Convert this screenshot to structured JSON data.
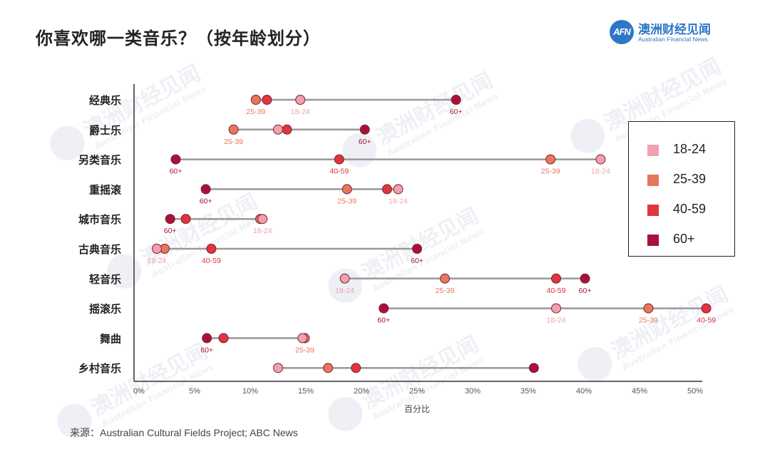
{
  "title": "你喜欢哪一类音乐？（按年龄划分）",
  "logo": {
    "mark": "AFN",
    "name_cn": "澳洲财经见闻",
    "name_en": "Australian Financial News"
  },
  "watermark": {
    "text_cn": "澳洲财经见闻",
    "text_en": "Australian Financial News"
  },
  "source": "来源：Australian Cultural Fields Project; ABC News",
  "colors": {
    "18-24": "#f0a1b0",
    "25-39": "#e8775a",
    "40-59": "#e0353e",
    "60+": "#a8123a",
    "line": "#999999"
  },
  "chart_data": {
    "type": "dot",
    "title": "你喜欢哪一类音乐？（按年龄划分）",
    "xlabel": "百分比",
    "xlim": [
      0,
      50
    ],
    "xticks": [
      "0%",
      "5%",
      "10%",
      "15%",
      "20%",
      "25%",
      "30%",
      "35%",
      "40%",
      "45%",
      "50%"
    ],
    "legend_position": "right",
    "series_names": [
      "18-24",
      "25-39",
      "40-59",
      "60+"
    ],
    "categories": [
      "经典乐",
      "爵士乐",
      "另类音乐",
      "重摇滚",
      "城市音乐",
      "古典音乐",
      "轻音乐",
      "摇滚乐",
      "舞曲",
      "乡村音乐"
    ],
    "rows": [
      {
        "genre": "经典乐",
        "values": {
          "18-24": 14.5,
          "25-39": 10.5,
          "40-59": 11.5,
          "60+": 28.5
        },
        "shown_labels": [
          "25-39",
          "18-24",
          "60+"
        ]
      },
      {
        "genre": "爵士乐",
        "values": {
          "18-24": 12.5,
          "25-39": 8.5,
          "40-59": 13.3,
          "60+": 20.3
        },
        "shown_labels": [
          "25-39",
          "60+"
        ]
      },
      {
        "genre": "另类音乐",
        "values": {
          "18-24": 41.5,
          "25-39": 37.0,
          "40-59": 18.0,
          "60+": 3.3
        },
        "shown_labels": [
          "60+",
          "40-59",
          "25-39",
          "18-24"
        ]
      },
      {
        "genre": "重摇滚",
        "values": {
          "18-24": 23.3,
          "25-39": 18.7,
          "40-59": 22.3,
          "60+": 6.0
        },
        "shown_labels": [
          "60+",
          "25-39",
          "18-24"
        ]
      },
      {
        "genre": "城市音乐",
        "values": {
          "18-24": 11.1,
          "25-39": 10.9,
          "40-59": 4.2,
          "60+": 2.8
        },
        "shown_labels": [
          "60+",
          "18-24"
        ]
      },
      {
        "genre": "古典音乐",
        "values": {
          "18-24": 1.6,
          "25-39": 2.3,
          "40-59": 6.5,
          "60+": 25.0
        },
        "shown_labels": [
          "18-24",
          "40-59",
          "60+"
        ]
      },
      {
        "genre": "轻音乐",
        "values": {
          "18-24": 18.5,
          "25-39": 27.5,
          "40-59": 37.5,
          "60+": 40.1
        },
        "shown_labels": [
          "18-24",
          "25-39",
          "40-59",
          "60+"
        ]
      },
      {
        "genre": "摇滚乐",
        "values": {
          "18-24": 37.5,
          "25-39": 45.8,
          "40-59": 51.0,
          "60+": 22.0
        },
        "shown_labels": [
          "60+",
          "18-24",
          "25-39",
          "40-59"
        ]
      },
      {
        "genre": "舞曲",
        "values": {
          "18-24": 14.7,
          "25-39": 14.9,
          "40-59": 7.6,
          "60+": 6.1
        },
        "shown_labels": [
          "60+",
          "25-39"
        ]
      },
      {
        "genre": "乡村音乐",
        "values": {
          "18-24": 12.5,
          "25-39": 17.0,
          "40-59": 19.5,
          "60+": 35.5
        },
        "shown_labels": []
      }
    ]
  }
}
